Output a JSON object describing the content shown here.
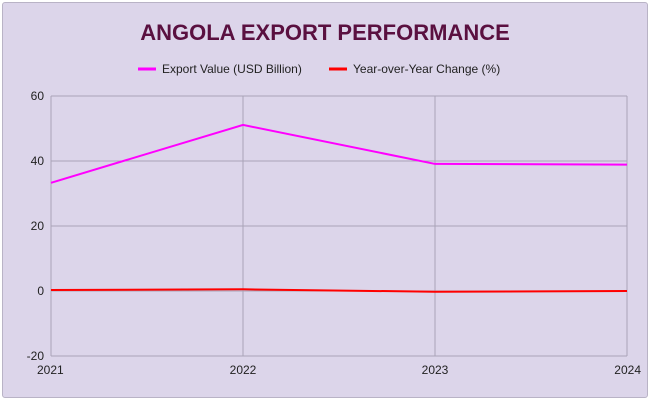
{
  "chart_data": {
    "type": "line",
    "title": "ANGOLA EXPORT PERFORMANCE",
    "categories": [
      "2021",
      "2022",
      "2023",
      "2024"
    ],
    "series": [
      {
        "name": "Export Value (USD Billion)",
        "color": "#ff00ff",
        "values": [
          33.3,
          51.1,
          39.1,
          38.9
        ]
      },
      {
        "name": "Year-over-Year Change (%)",
        "color": "#ff0000",
        "values": [
          0.3,
          0.52,
          -0.23,
          -0.01
        ]
      }
    ],
    "xlabel": "",
    "ylabel": "",
    "ylim": [
      -20,
      60
    ],
    "yticks": [
      "-20",
      "0",
      "20",
      "40",
      "60"
    ],
    "grid": true,
    "legend": "top"
  }
}
